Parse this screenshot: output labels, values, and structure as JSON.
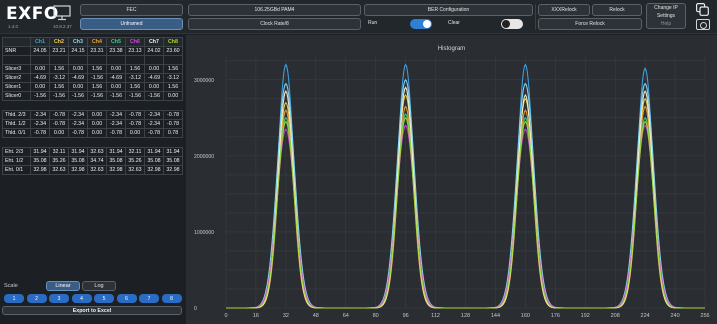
{
  "header": {
    "logo": "EXFO",
    "version_left": "1.4.0",
    "version_right": "10.8.2.37",
    "fec_label": "FEC",
    "unframed_label": "Unframed",
    "rate_label": "106.25GBd PAM4",
    "clock_label": "Clock Rate/8",
    "ber_label": "BER Configuration",
    "run_label": "Run",
    "clear_label": "Clear",
    "run_on": true,
    "clear_on": false,
    "xxx_relock_label": "XXXRelock",
    "relock_label": "Relock",
    "force_relock_label": "Force Relock",
    "change_ip_label": "Change IP",
    "settings_label": "Settings",
    "help_label": "Help"
  },
  "table": {
    "headers": [
      "",
      "Ch1",
      "Ch2",
      "Ch3",
      "Ch4",
      "Ch5",
      "Ch6",
      "Ch7",
      "Ch8"
    ],
    "header_colors": [
      "#ffffff",
      "#2da7e0",
      "#f0d24a",
      "#8fd8f2",
      "#f0a233",
      "#3ad088",
      "#d04ad8",
      "#f4f2d6",
      "#a8d62e"
    ],
    "snr": {
      "label": "SNR",
      "values": [
        "24.05",
        "23.21",
        "24.15",
        "23.31",
        "23.38",
        "23.13",
        "24.02",
        "23.60"
      ]
    },
    "slicers": [
      {
        "label": "Slicer3",
        "values": [
          "0.00",
          "1.56",
          "0.00",
          "1.56",
          "0.00",
          "1.56",
          "0.00",
          "1.56"
        ]
      },
      {
        "label": "Slicer2",
        "values": [
          "-4.69",
          "-3.12",
          "-4.69",
          "-1.56",
          "-4.69",
          "-3.12",
          "-4.69",
          "-3.12"
        ]
      },
      {
        "label": "Slicer1",
        "values": [
          "0.00",
          "1.56",
          "0.00",
          "1.56",
          "0.00",
          "1.56",
          "0.00",
          "1.56"
        ]
      },
      {
        "label": "Slicer0",
        "values": [
          "-1.56",
          "-1.56",
          "-1.56",
          "-1.56",
          "-1.56",
          "-1.56",
          "-1.56",
          "0.00"
        ]
      }
    ],
    "thresholds": [
      {
        "label": "Thld. 2/3",
        "values": [
          "-2.34",
          "-0.78",
          "-2.34",
          "0.00",
          "-2.34",
          "-0.78",
          "-2.34",
          "-0.78"
        ]
      },
      {
        "label": "Thld. 1/2",
        "values": [
          "-2.34",
          "-0.78",
          "-2.34",
          "0.00",
          "-2.34",
          "-0.78",
          "-2.34",
          "-0.78"
        ]
      },
      {
        "label": "Thld. 0/1",
        "values": [
          "-0.78",
          "0.00",
          "-0.78",
          "0.00",
          "-0.78",
          "0.00",
          "-0.78",
          "0.78"
        ]
      }
    ],
    "ehts": [
      {
        "label": "Eht. 2/3",
        "values": [
          "31.94",
          "32.11",
          "31.94",
          "32.63",
          "31.94",
          "32.11",
          "31.94",
          "31.94"
        ]
      },
      {
        "label": "Eht. 1/2",
        "values": [
          "35.08",
          "35.26",
          "35.08",
          "34.74",
          "35.08",
          "35.26",
          "35.08",
          "35.08"
        ]
      },
      {
        "label": "Eht. 0/1",
        "values": [
          "32.98",
          "32.63",
          "32.98",
          "32.63",
          "32.98",
          "32.63",
          "32.98",
          "32.98"
        ]
      }
    ]
  },
  "scale": {
    "label": "Scale",
    "linear_label": "Linear",
    "log_label": "Log",
    "selected": "Linear",
    "channels": [
      "1",
      "2",
      "3",
      "4",
      "5",
      "6",
      "7",
      "8"
    ]
  },
  "export_label": "Export to Excel",
  "chart_data": {
    "type": "line",
    "title": "Histogram",
    "xlim": [
      0,
      256
    ],
    "ylim": [
      0,
      3300000
    ],
    "x_ticks": [
      0,
      16,
      32,
      48,
      64,
      80,
      96,
      112,
      128,
      144,
      160,
      176,
      192,
      208,
      224,
      240,
      256
    ],
    "y_ticks": [
      0,
      1000000,
      2000000,
      3000000
    ],
    "y_tick_labels": [
      "0",
      "1000000",
      "2000000",
      "3000000"
    ],
    "peaks_x": [
      32,
      96,
      160,
      224
    ],
    "peak_sigma": 4.2,
    "grid": true,
    "series": [
      {
        "color": "#3aa6e8",
        "peaks": [
          3200000,
          3200000,
          3200000,
          3150000
        ]
      },
      {
        "color": "#f0d24a",
        "peaks": [
          2700000,
          2800000,
          2750000,
          2750000
        ]
      },
      {
        "color": "#8fd8f2",
        "peaks": [
          2950000,
          3000000,
          2950000,
          2950000
        ]
      },
      {
        "color": "#f0a233",
        "peaks": [
          2600000,
          2650000,
          2600000,
          2650000
        ]
      },
      {
        "color": "#3ad088",
        "peaks": [
          2500000,
          2550000,
          2500000,
          2500000
        ]
      },
      {
        "color": "#d04ad8",
        "peaks": [
          2350000,
          2400000,
          2350000,
          2400000
        ]
      },
      {
        "color": "#f4f2d6",
        "peaks": [
          2850000,
          2900000,
          2800000,
          2850000
        ]
      },
      {
        "color": "#a8d62e",
        "peaks": [
          2450000,
          2500000,
          2450000,
          2450000
        ]
      }
    ]
  }
}
